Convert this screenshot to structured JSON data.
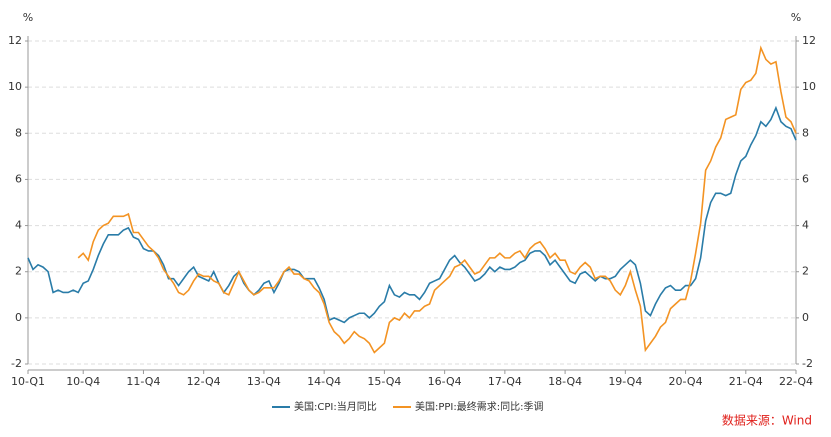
{
  "chart_data": {
    "type": "line",
    "y_unit": "%",
    "y2_unit": "%",
    "categories": [
      "10-Q1",
      null,
      null,
      null,
      null,
      null,
      null,
      null,
      null,
      null,
      null,
      "10-Q4",
      null,
      null,
      null,
      null,
      null,
      null,
      null,
      null,
      null,
      null,
      null,
      "11-Q4",
      null,
      null,
      null,
      null,
      null,
      null,
      null,
      null,
      null,
      null,
      null,
      "12-Q4",
      null,
      null,
      null,
      null,
      null,
      null,
      null,
      null,
      null,
      null,
      null,
      "13-Q4",
      null,
      null,
      null,
      null,
      null,
      null,
      null,
      null,
      null,
      null,
      null,
      "14-Q4",
      null,
      null,
      null,
      null,
      null,
      null,
      null,
      null,
      null,
      null,
      null,
      "15-Q4",
      null,
      null,
      null,
      null,
      null,
      null,
      null,
      null,
      null,
      null,
      null,
      "16-Q4",
      null,
      null,
      null,
      null,
      null,
      null,
      null,
      null,
      null,
      null,
      null,
      "17-Q4",
      null,
      null,
      null,
      null,
      null,
      null,
      null,
      null,
      null,
      null,
      null,
      "18-Q4",
      null,
      null,
      null,
      null,
      null,
      null,
      null,
      null,
      null,
      null,
      null,
      "19-Q4",
      null,
      null,
      null,
      null,
      null,
      null,
      null,
      null,
      null,
      null,
      null,
      "20-Q4",
      null,
      null,
      null,
      null,
      null,
      null,
      null,
      null,
      null,
      null,
      null,
      "21-Q4",
      null,
      null,
      null,
      null,
      null,
      null,
      null,
      null,
      null,
      "22-Q4"
    ],
    "series": [
      {
        "name": "美国:CPI:当月同比",
        "color": "#2a7ca8",
        "values": [
          2.6,
          2.1,
          2.3,
          2.2,
          2.0,
          1.1,
          1.2,
          1.1,
          1.1,
          1.2,
          1.1,
          1.5,
          1.6,
          2.1,
          2.7,
          3.2,
          3.6,
          3.6,
          3.6,
          3.8,
          3.9,
          3.5,
          3.4,
          3.0,
          2.9,
          2.9,
          2.7,
          2.3,
          1.7,
          1.7,
          1.4,
          1.7,
          2.0,
          2.2,
          1.8,
          1.7,
          1.6,
          2.0,
          1.5,
          1.1,
          1.4,
          1.8,
          2.0,
          1.5,
          1.2,
          1.0,
          1.2,
          1.5,
          1.6,
          1.1,
          1.5,
          2.0,
          2.1,
          2.1,
          2.0,
          1.7,
          1.7,
          1.7,
          1.3,
          0.8,
          -0.1,
          0.0,
          -0.1,
          -0.2,
          0.0,
          0.1,
          0.2,
          0.2,
          0.0,
          0.2,
          0.5,
          0.7,
          1.4,
          1.0,
          0.9,
          1.1,
          1.0,
          1.0,
          0.8,
          1.1,
          1.5,
          1.6,
          1.7,
          2.1,
          2.5,
          2.7,
          2.4,
          2.2,
          1.9,
          1.6,
          1.7,
          1.9,
          2.2,
          2.0,
          2.2,
          2.1,
          2.1,
          2.2,
          2.4,
          2.5,
          2.8,
          2.9,
          2.9,
          2.7,
          2.3,
          2.5,
          2.2,
          1.9,
          1.6,
          1.5,
          1.9,
          2.0,
          1.8,
          1.6,
          1.8,
          1.7,
          1.7,
          1.8,
          2.1,
          2.3,
          2.5,
          2.3,
          1.5,
          0.3,
          0.1,
          0.6,
          1.0,
          1.3,
          1.4,
          1.2,
          1.2,
          1.4,
          1.4,
          1.7,
          2.6,
          4.2,
          5.0,
          5.4,
          5.4,
          5.3,
          5.4,
          6.2,
          6.8,
          7.0,
          7.5,
          7.9,
          8.5,
          8.3,
          8.6,
          9.1,
          8.5,
          8.3,
          8.2,
          7.7
        ]
      },
      {
        "name": "美国:PPI:最终需求:同比:季调",
        "color": "#f39323",
        "values": [
          null,
          null,
          null,
          null,
          null,
          null,
          null,
          null,
          null,
          null,
          2.6,
          2.8,
          2.5,
          3.3,
          3.8,
          4.0,
          4.1,
          4.4,
          4.4,
          4.4,
          4.5,
          3.7,
          3.7,
          3.4,
          3.1,
          2.9,
          2.6,
          2.1,
          1.8,
          1.5,
          1.1,
          1.0,
          1.2,
          1.6,
          1.9,
          1.8,
          1.8,
          1.6,
          1.5,
          1.1,
          1.0,
          1.5,
          2.0,
          1.6,
          1.2,
          1.0,
          1.1,
          1.3,
          1.3,
          1.3,
          1.6,
          2.0,
          2.2,
          1.9,
          1.9,
          1.7,
          1.6,
          1.3,
          1.1,
          0.6,
          -0.2,
          -0.6,
          -0.8,
          -1.1,
          -0.9,
          -0.6,
          -0.8,
          -0.9,
          -1.1,
          -1.5,
          -1.3,
          -1.1,
          -0.2,
          0.0,
          -0.1,
          0.2,
          0.0,
          0.3,
          0.3,
          0.5,
          0.6,
          1.2,
          1.4,
          1.6,
          1.8,
          2.2,
          2.3,
          2.5,
          2.2,
          1.9,
          2.0,
          2.3,
          2.6,
          2.6,
          2.8,
          2.6,
          2.6,
          2.8,
          2.9,
          2.6,
          3.0,
          3.2,
          3.3,
          3.0,
          2.6,
          2.8,
          2.5,
          2.5,
          2.0,
          1.9,
          2.2,
          2.4,
          2.2,
          1.7,
          1.8,
          1.8,
          1.6,
          1.2,
          1.0,
          1.4,
          2.0,
          1.2,
          0.5,
          -1.4,
          -1.1,
          -0.8,
          -0.4,
          -0.2,
          0.4,
          0.6,
          0.8,
          0.8,
          1.6,
          2.8,
          4.1,
          6.4,
          6.8,
          7.4,
          7.8,
          8.6,
          8.7,
          8.8,
          9.9,
          10.2,
          10.3,
          10.6,
          11.7,
          11.2,
          11.0,
          11.1,
          9.8,
          8.7,
          8.5,
          8.0
        ]
      }
    ],
    "ylim": [
      -2,
      12
    ],
    "yticks": [
      -2,
      0,
      2,
      4,
      6,
      8,
      10,
      12
    ],
    "y2lim": [
      -2,
      12
    ],
    "y2ticks": [
      -2,
      0,
      2,
      4,
      6,
      8,
      10,
      12
    ],
    "grid": true,
    "legend": "bottom",
    "source": "数据来源：Wind"
  }
}
